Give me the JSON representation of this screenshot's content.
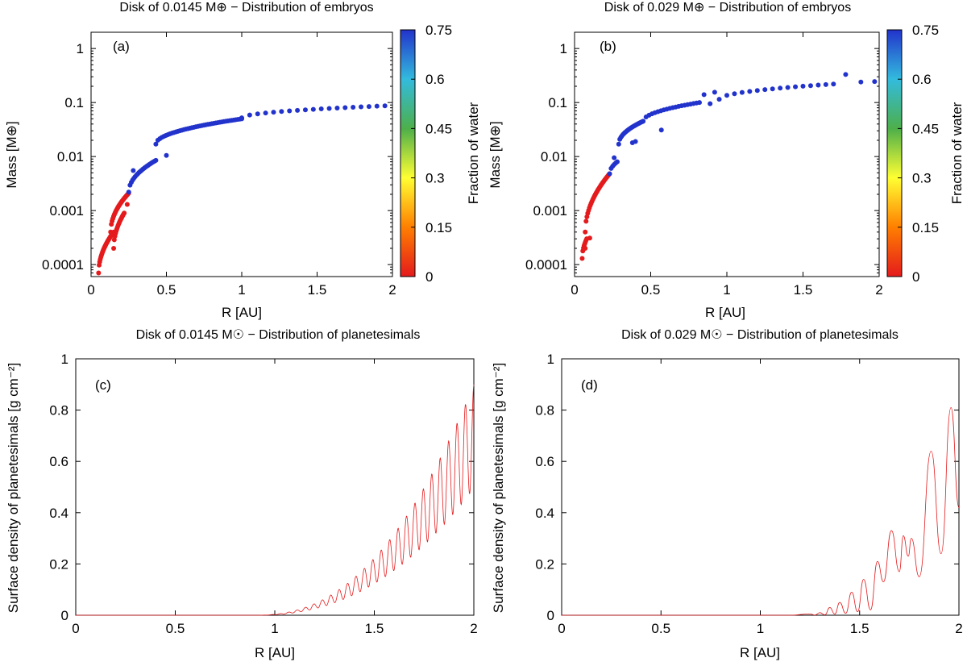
{
  "chart_data": [
    {
      "id": "a",
      "type": "scatter",
      "title": "Disk of 0.0145 M⊕ − Distribution of embryos",
      "panel_label": "(a)",
      "xlabel": "R [AU]",
      "ylabel": "Mass [M⊕]",
      "xlim": [
        0,
        2
      ],
      "ylim": [
        6e-05,
        2
      ],
      "ylog": true,
      "xticks": [
        0,
        0.5,
        1,
        1.5,
        2
      ],
      "xtick_labels": [
        "0",
        "0.5",
        "1",
        "1.5",
        "2"
      ],
      "yticks": [
        0.0001,
        0.001,
        0.01,
        0.1,
        1
      ],
      "ytick_labels": [
        "0.0001",
        "0.001",
        "0.01",
        "0.1",
        "1"
      ],
      "colorbar": {
        "label": "Fraction of water",
        "range": [
          0,
          0.75
        ],
        "ticks": [
          0,
          0.15,
          0.3,
          0.45,
          0.6,
          0.75
        ],
        "tick_labels": [
          "0",
          "0.15",
          "0.3",
          "0.45",
          "0.6",
          "0.75"
        ],
        "colors": [
          "#e41a1c",
          "#ff7f00",
          "#ffff33",
          "#4daf4a",
          "#33bbdd",
          "#2233cc"
        ]
      },
      "series": [
        {
          "segments": [
            {
              "from": [
                0.05,
                7e-05
              ],
              "to": [
                0.15,
                0.0004
              ],
              "n": 28,
              "water": 0
            },
            {
              "from": [
                0.13,
                0.0004
              ],
              "to": [
                0.25,
                0.0021
              ],
              "n": 26,
              "water": 0
            },
            {
              "from": [
                0.15,
                0.0002
              ],
              "to": [
                0.22,
                0.0009
              ],
              "n": 18,
              "water": 0
            },
            {
              "from": [
                0.25,
                0.0022
              ],
              "to": [
                0.43,
                0.0085
              ],
              "n": 22,
              "water": 0.75
            },
            {
              "from": [
                0.43,
                0.017
              ],
              "to": [
                1.0,
                0.05
              ],
              "n": 44,
              "water": 0.75
            },
            {
              "from": [
                1.0,
                0.052
              ],
              "to": [
                1.95,
                0.087
              ],
              "n": 19,
              "water": 0.75
            }
          ],
          "points": [
            {
              "x": 0.28,
              "y": 0.0055,
              "water": 0.75
            },
            {
              "x": 0.5,
              "y": 0.0105,
              "water": 0.75
            },
            {
              "x": 0.24,
              "y": 0.0013,
              "water": 0
            }
          ]
        }
      ]
    },
    {
      "id": "b",
      "type": "scatter",
      "title": "Disk of 0.029 M⊕ − Distribution of embryos",
      "panel_label": "(b)",
      "xlabel": "R [AU]",
      "ylabel": "Mass [M⊕]",
      "xlim": [
        0,
        2
      ],
      "ylim": [
        6e-05,
        2
      ],
      "ylog": true,
      "xticks": [
        0,
        0.5,
        1,
        1.5,
        2
      ],
      "xtick_labels": [
        "0",
        "0.5",
        "1",
        "1.5",
        "2"
      ],
      "yticks": [
        0.0001,
        0.001,
        0.01,
        0.1,
        1
      ],
      "ytick_labels": [
        "0.0001",
        "0.001",
        "0.01",
        "0.1",
        "1"
      ],
      "colorbar": {
        "label": "Fraction of water",
        "range": [
          0,
          0.75
        ],
        "ticks": [
          0,
          0.15,
          0.3,
          0.45,
          0.6,
          0.75
        ],
        "tick_labels": [
          "0",
          "0.15",
          "0.3",
          "0.45",
          "0.6",
          "0.75"
        ],
        "colors": [
          "#e41a1c",
          "#ff7f00",
          "#ffff33",
          "#4daf4a",
          "#33bbdd",
          "#2233cc"
        ]
      },
      "series": [
        {
          "segments": [
            {
              "from": [
                0.05,
                0.00013
              ],
              "to": [
                0.08,
                0.0003
              ],
              "n": 8,
              "water": 0
            },
            {
              "from": [
                0.07,
                0.0004
              ],
              "to": [
                0.23,
                0.0048
              ],
              "n": 30,
              "water": 0
            },
            {
              "from": [
                0.23,
                0.0048
              ],
              "to": [
                0.28,
                0.008
              ],
              "n": 6,
              "water": 0.75
            },
            {
              "from": [
                0.29,
                0.017
              ],
              "to": [
                0.45,
                0.045
              ],
              "n": 24,
              "water": 0.75
            },
            {
              "from": [
                0.45,
                0.045
              ],
              "to": [
                0.82,
                0.1
              ],
              "n": 20,
              "water": 0.75
            },
            {
              "from": [
                0.95,
                0.115
              ],
              "to": [
                1.7,
                0.22
              ],
              "n": 16,
              "water": 0.75
            }
          ],
          "points": [
            {
              "x": 0.26,
              "y": 0.0095,
              "water": 0.75
            },
            {
              "x": 0.38,
              "y": 0.018,
              "water": 0.75
            },
            {
              "x": 0.4,
              "y": 0.019,
              "water": 0.75
            },
            {
              "x": 0.57,
              "y": 0.031,
              "water": 0.75
            },
            {
              "x": 0.85,
              "y": 0.14,
              "water": 0.75
            },
            {
              "x": 0.89,
              "y": 0.095,
              "water": 0.75
            },
            {
              "x": 0.92,
              "y": 0.155,
              "water": 0.75
            },
            {
              "x": 1.78,
              "y": 0.33,
              "water": 0.75
            },
            {
              "x": 1.88,
              "y": 0.24,
              "water": 0.75
            },
            {
              "x": 1.97,
              "y": 0.245,
              "water": 0.75
            },
            {
              "x": 0.07,
              "y": 0.0002,
              "water": 0
            },
            {
              "x": 0.1,
              "y": 0.00031,
              "water": 0
            }
          ]
        }
      ]
    },
    {
      "id": "c",
      "type": "line",
      "title": "Disk of 0.0145 M☉ − Distribution of planetesimals",
      "panel_label": "(c)",
      "xlabel": "R [AU]",
      "ylabel": "Surface density of planetesimals [g cm⁻²]",
      "xlim": [
        0,
        2
      ],
      "ylim": [
        0,
        1
      ],
      "xticks": [
        0,
        0.5,
        1,
        1.5,
        2
      ],
      "xtick_labels": [
        "0",
        "0.5",
        "1",
        "1.5",
        "2"
      ],
      "yticks": [
        0,
        0.2,
        0.4,
        0.6,
        0.8,
        1
      ],
      "ytick_labels": [
        "0",
        "0.2",
        "0.4",
        "0.6",
        "0.8",
        "1"
      ],
      "line_color": "#e41a1c",
      "curve": {
        "onset": 0.9,
        "end": 2.0,
        "max_peak": 0.9,
        "exponent": 2.3,
        "oscillations": 26,
        "trough_ratio": 0.55
      }
    },
    {
      "id": "d",
      "type": "line",
      "title": "Disk of 0.029 M☉ − Distribution of planetesimals",
      "panel_label": "(d)",
      "xlabel": "R [AU]",
      "ylabel": "Surface density of planetesimals [g cm⁻²]",
      "xlim": [
        0,
        2
      ],
      "ylim": [
        0,
        1
      ],
      "xticks": [
        0,
        0.5,
        1,
        1.5,
        2
      ],
      "xtick_labels": [
        "0",
        "0.5",
        "1",
        "1.5",
        "2"
      ],
      "yticks": [
        0,
        0.2,
        0.4,
        0.6,
        0.8,
        1
      ],
      "ytick_labels": [
        "0",
        "0.2",
        "0.4",
        "0.6",
        "0.8",
        "1"
      ],
      "line_color": "#e41a1c",
      "peaks": [
        {
          "x": 1.25,
          "y": 0.005
        },
        {
          "x": 1.3,
          "y": 0.01
        },
        {
          "x": 1.35,
          "y": 0.03
        },
        {
          "x": 1.4,
          "y": 0.05
        },
        {
          "x": 1.46,
          "y": 0.09
        },
        {
          "x": 1.52,
          "y": 0.14
        },
        {
          "x": 1.59,
          "y": 0.21
        },
        {
          "x": 1.66,
          "y": 0.33
        },
        {
          "x": 1.72,
          "y": 0.31
        },
        {
          "x": 1.76,
          "y": 0.3
        },
        {
          "x": 1.86,
          "y": 0.64
        },
        {
          "x": 1.96,
          "y": 0.81
        }
      ],
      "troughs": [
        {
          "x": 1.62,
          "y": 0.13
        },
        {
          "x": 1.7,
          "y": 0.17
        },
        {
          "x": 1.745,
          "y": 0.23
        },
        {
          "x": 1.8,
          "y": 0.15
        },
        {
          "x": 1.91,
          "y": 0.24
        },
        {
          "x": 2.0,
          "y": 0.42
        }
      ]
    }
  ]
}
